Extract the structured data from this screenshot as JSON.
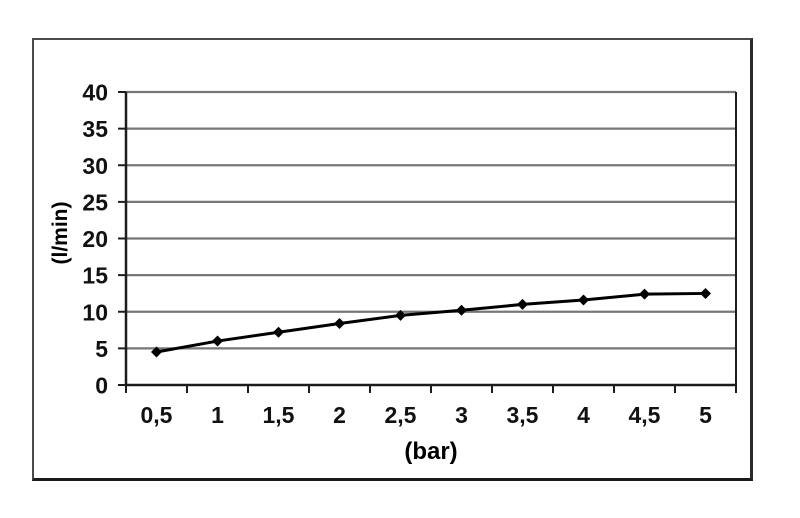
{
  "figure": {
    "background": "#ffffff",
    "frame_border_color": "#4a4a4a"
  },
  "chart_data": {
    "type": "line",
    "title": "",
    "xlabel": "(bar)",
    "ylabel": "(l/min)",
    "categories": [
      "0,5",
      "1",
      "1,5",
      "2",
      "2,5",
      "3",
      "3,5",
      "4",
      "4,5",
      "5"
    ],
    "x": [
      0.5,
      1,
      1.5,
      2,
      2.5,
      3,
      3.5,
      4,
      4.5,
      5
    ],
    "values": [
      4.5,
      6,
      7.2,
      8.4,
      9.5,
      10.2,
      11,
      11.6,
      12.4,
      12.5
    ],
    "ylim": [
      0,
      40
    ],
    "yticks": [
      0,
      5,
      10,
      15,
      20,
      25,
      30,
      35,
      40
    ],
    "ytick_labels": [
      "0",
      "5",
      "10",
      "15",
      "20",
      "25",
      "30",
      "35",
      "40"
    ],
    "grid": true,
    "legend": false,
    "line_color": "#000000",
    "marker": "diamond",
    "marker_color": "#000000",
    "grid_color": "#777777",
    "axis_color": "#1c1c1c",
    "text_color": "#111111"
  }
}
